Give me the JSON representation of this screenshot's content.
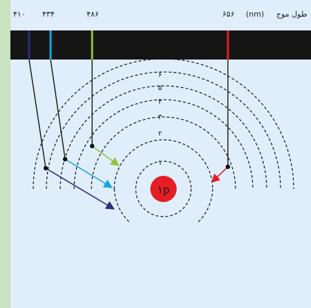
{
  "header": {
    "wavelength_label": "طول موج",
    "unit_label": "(nm)",
    "ticks": [
      "۴۱۰",
      "۴۳۴",
      "۴۸۶",
      "۶۵۶"
    ]
  },
  "orbits": {
    "labels": [
      "۱",
      "۲",
      "۳",
      "۴",
      "۵",
      "۶"
    ]
  },
  "nucleus": {
    "label": "۱p"
  },
  "spectral_lines": [
    {
      "wavelength": "۴۱۰",
      "color": "#2e2d7c"
    },
    {
      "wavelength": "۴۳۴",
      "color": "#1aa5dc"
    },
    {
      "wavelength": "۴۸۶",
      "color": "#8cc63f"
    },
    {
      "wavelength": "۶۵۶",
      "color": "#e31e24"
    }
  ],
  "colors": {
    "panel_bg": "#dfeefa",
    "frame_bg": "#c9e2bf",
    "band_bg": "#151515",
    "nucleus": "#e31e24"
  }
}
